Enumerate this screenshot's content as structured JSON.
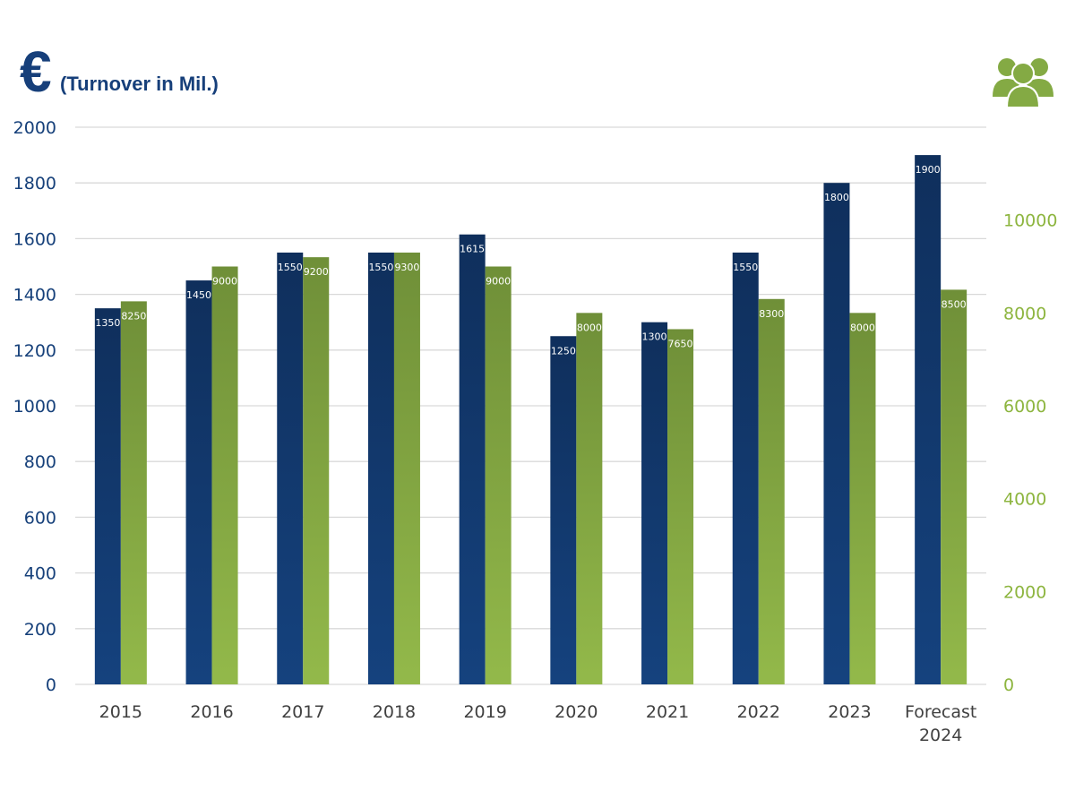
{
  "header": {
    "currency_symbol": "€",
    "left_axis_caption": "(Turnover in Mil.)",
    "right_icon": "people-group-icon"
  },
  "colors": {
    "turnover": "#15427e",
    "employees": "#84aa44",
    "left_axis_text": "#16407a",
    "right_axis_text": "#8db53f",
    "category_text": "#404040",
    "gridline": "#d9d9d9"
  },
  "chart_data": {
    "type": "bar",
    "categories": [
      "2015",
      "2016",
      "2017",
      "2018",
      "2019",
      "2020",
      "2021",
      "2022",
      "2023",
      "Forecast 2024"
    ],
    "category_lines": [
      [
        "2015"
      ],
      [
        "2016"
      ],
      [
        "2017"
      ],
      [
        "2018"
      ],
      [
        "2019"
      ],
      [
        "2020"
      ],
      [
        "2021"
      ],
      [
        "2022"
      ],
      [
        "2023"
      ],
      [
        "Forecast",
        "2024"
      ]
    ],
    "series": [
      {
        "values": [
          1350,
          1450,
          1550,
          1550,
          1615,
          1250,
          1300,
          1550,
          1800,
          1900
        ],
        "axis": "left",
        "color": "#15427e"
      },
      {
        "values": [
          8250,
          9000,
          9200,
          9300,
          9000,
          8000,
          7650,
          8300,
          8000,
          8500
        ],
        "axis": "right",
        "color": "#84aa44"
      }
    ],
    "left_axis": {
      "min": 0,
      "max": 2000,
      "ticks": [
        0,
        200,
        400,
        600,
        800,
        1000,
        1200,
        1400,
        1600,
        1800,
        2000
      ]
    },
    "right_axis": {
      "min": 0,
      "max": 12000,
      "ticks": [
        0,
        2000,
        4000,
        6000,
        8000,
        10000
      ]
    },
    "grid": true,
    "data_labels": true,
    "legend": "none"
  }
}
